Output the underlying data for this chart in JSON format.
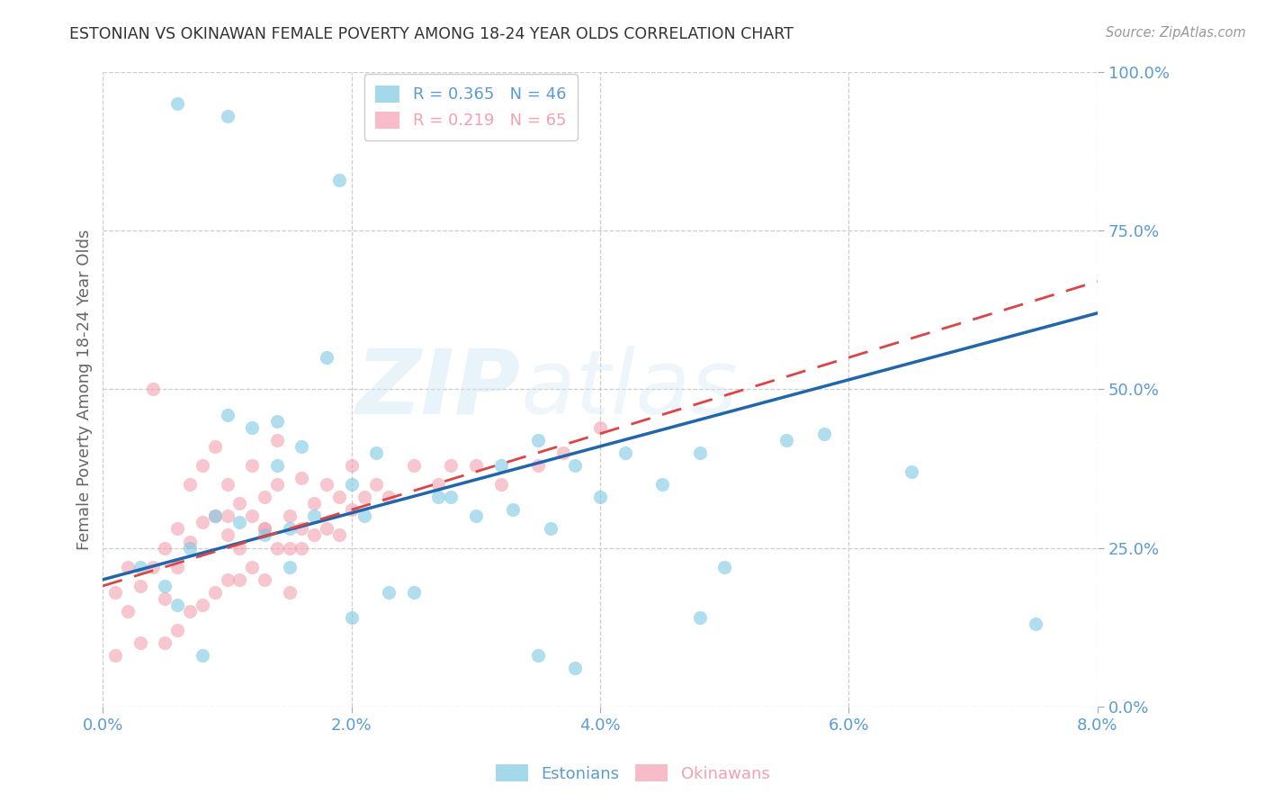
{
  "title": "ESTONIAN VS OKINAWAN FEMALE POVERTY AMONG 18-24 YEAR OLDS CORRELATION CHART",
  "source": "Source: ZipAtlas.com",
  "ylabel": "Female Poverty Among 18-24 Year Olds",
  "xlim": [
    0.0,
    0.08
  ],
  "ylim": [
    0.0,
    1.0
  ],
  "xticks": [
    0.0,
    0.02,
    0.04,
    0.06,
    0.08
  ],
  "yticks": [
    0.0,
    0.25,
    0.5,
    0.75,
    1.0
  ],
  "xtick_labels": [
    "0.0%",
    "2.0%",
    "4.0%",
    "6.0%",
    "8.0%"
  ],
  "ytick_labels": [
    "0.0%",
    "25.0%",
    "50.0%",
    "75.0%",
    "100.0%"
  ],
  "estonian_color": "#7ec8e3",
  "okinawan_color": "#f4a0b0",
  "estonian_line_color": "#2166ac",
  "okinawan_line_color": "#d44",
  "estonian_R": 0.365,
  "estonian_N": 46,
  "okinawan_R": 0.219,
  "okinawan_N": 65,
  "background_color": "#ffffff",
  "grid_color": "#cccccc",
  "watermark": "ZIPatlas",
  "title_color": "#333333",
  "axis_label_color": "#666666",
  "tick_label_color": "#5b9bd5",
  "estonian_x": [
    0.003,
    0.005,
    0.006,
    0.007,
    0.008,
    0.009,
    0.01,
    0.011,
    0.012,
    0.013,
    0.014,
    0.014,
    0.015,
    0.016,
    0.017,
    0.018,
    0.019,
    0.02,
    0.021,
    0.022,
    0.023,
    0.025,
    0.027,
    0.028,
    0.03,
    0.032,
    0.033,
    0.035,
    0.036,
    0.038,
    0.04,
    0.042,
    0.045,
    0.048,
    0.05,
    0.055,
    0.058,
    0.006,
    0.01,
    0.015,
    0.02,
    0.038,
    0.065,
    0.075,
    0.048,
    0.035
  ],
  "estonian_y": [
    0.22,
    0.19,
    0.95,
    0.25,
    0.08,
    0.3,
    0.46,
    0.29,
    0.44,
    0.27,
    0.45,
    0.38,
    0.28,
    0.41,
    0.3,
    0.55,
    0.83,
    0.35,
    0.3,
    0.4,
    0.18,
    0.18,
    0.33,
    0.33,
    0.3,
    0.38,
    0.31,
    0.42,
    0.28,
    0.06,
    0.33,
    0.4,
    0.35,
    0.4,
    0.22,
    0.42,
    0.43,
    0.16,
    0.93,
    0.22,
    0.14,
    0.38,
    0.37,
    0.13,
    0.14,
    0.08
  ],
  "okinawan_x": [
    0.001,
    0.001,
    0.002,
    0.002,
    0.003,
    0.003,
    0.004,
    0.004,
    0.005,
    0.005,
    0.005,
    0.006,
    0.006,
    0.006,
    0.007,
    0.007,
    0.007,
    0.008,
    0.008,
    0.008,
    0.009,
    0.009,
    0.009,
    0.01,
    0.01,
    0.01,
    0.01,
    0.011,
    0.011,
    0.011,
    0.012,
    0.012,
    0.012,
    0.013,
    0.013,
    0.013,
    0.013,
    0.014,
    0.014,
    0.014,
    0.015,
    0.015,
    0.015,
    0.016,
    0.016,
    0.016,
    0.017,
    0.017,
    0.018,
    0.018,
    0.019,
    0.019,
    0.02,
    0.02,
    0.021,
    0.022,
    0.023,
    0.025,
    0.027,
    0.028,
    0.03,
    0.032,
    0.035,
    0.037,
    0.04
  ],
  "okinawan_y": [
    0.18,
    0.08,
    0.15,
    0.22,
    0.19,
    0.1,
    0.22,
    0.5,
    0.25,
    0.17,
    0.1,
    0.28,
    0.22,
    0.12,
    0.35,
    0.26,
    0.15,
    0.38,
    0.29,
    0.16,
    0.41,
    0.3,
    0.18,
    0.35,
    0.27,
    0.2,
    0.3,
    0.32,
    0.25,
    0.2,
    0.38,
    0.3,
    0.22,
    0.33,
    0.28,
    0.2,
    0.28,
    0.42,
    0.35,
    0.25,
    0.3,
    0.25,
    0.18,
    0.28,
    0.36,
    0.25,
    0.32,
    0.27,
    0.35,
    0.28,
    0.33,
    0.27,
    0.38,
    0.31,
    0.33,
    0.35,
    0.33,
    0.38,
    0.35,
    0.38,
    0.38,
    0.35,
    0.38,
    0.4,
    0.44
  ]
}
